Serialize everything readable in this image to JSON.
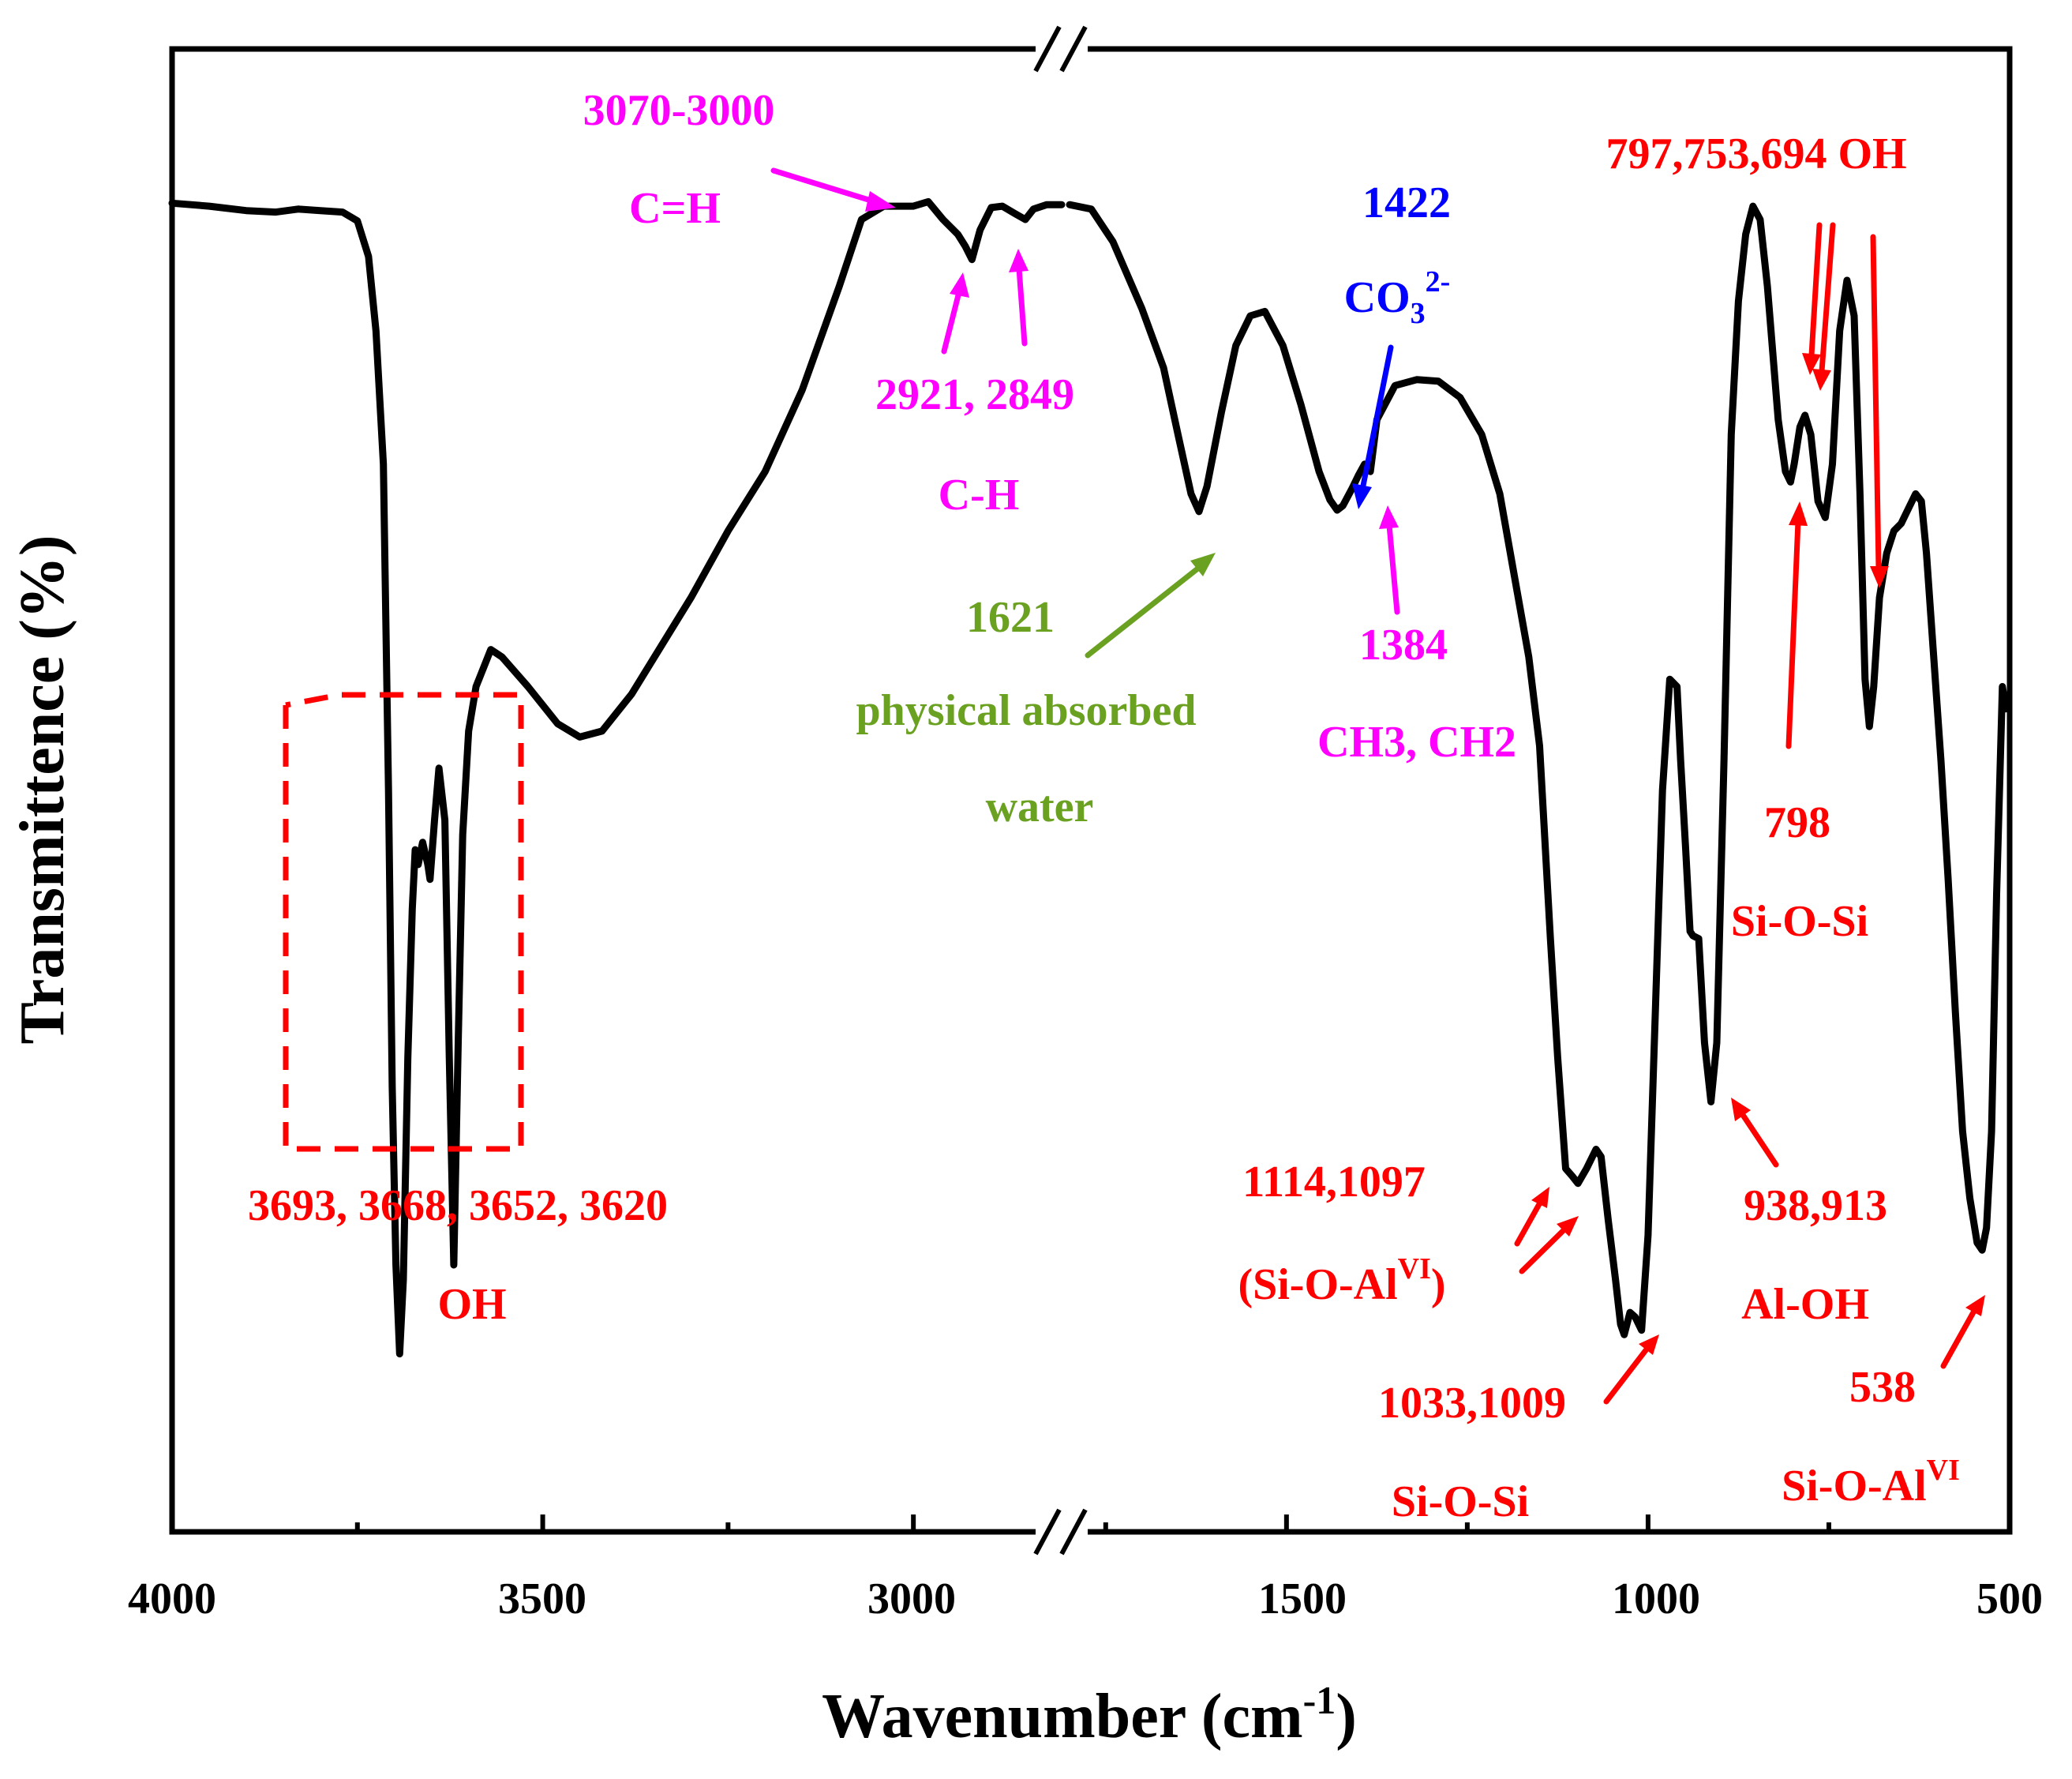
{
  "colors": {
    "spectrum": "#000000",
    "magenta": "#ff00ff",
    "blue": "#0000ff",
    "green": "#6aa121",
    "red": "#ff0000"
  },
  "chart_data": {
    "type": "line",
    "title": "",
    "xlabel_main": "Wavenumber (cm",
    "xlabel_sup": "-1",
    "xlabel_end": ")",
    "ylabel": "Transmittence (%)",
    "x_axis": {
      "reversed": true,
      "broken": true,
      "segment_left": [
        4000,
        2800
      ],
      "segment_right": [
        1800,
        500
      ]
    },
    "ylim": [
      0,
      100
    ],
    "y_ticks_shown": false,
    "tick_labels": [
      "4000",
      "3500",
      "3000",
      "1500",
      "1000",
      "500"
    ],
    "series": [
      {
        "name": "spectrum",
        "points": [
          [
            4000,
            89.6
          ],
          [
            3950,
            89.4
          ],
          [
            3900,
            89.1
          ],
          [
            3860,
            89.0
          ],
          [
            3830,
            89.2
          ],
          [
            3800,
            89.1
          ],
          [
            3770,
            89.0
          ],
          [
            3750,
            88.4
          ],
          [
            3735,
            86.0
          ],
          [
            3725,
            81.0
          ],
          [
            3715,
            72.0
          ],
          [
            3708,
            50.0
          ],
          [
            3703,
            30.0
          ],
          [
            3698,
            18.0
          ],
          [
            3693,
            12.0
          ],
          [
            3688,
            17.0
          ],
          [
            3682,
            32.0
          ],
          [
            3676,
            42.0
          ],
          [
            3672,
            46.0
          ],
          [
            3668,
            45.0
          ],
          [
            3662,
            46.5
          ],
          [
            3655,
            45.0
          ],
          [
            3652,
            44.0
          ],
          [
            3646,
            48.0
          ],
          [
            3640,
            51.5
          ],
          [
            3632,
            48.0
          ],
          [
            3626,
            32.0
          ],
          [
            3620,
            18.0
          ],
          [
            3614,
            33.0
          ],
          [
            3608,
            47.0
          ],
          [
            3600,
            54.0
          ],
          [
            3590,
            57.0
          ],
          [
            3570,
            59.5
          ],
          [
            3555,
            59.0
          ],
          [
            3520,
            57.0
          ],
          [
            3480,
            54.5
          ],
          [
            3450,
            53.6
          ],
          [
            3420,
            54.0
          ],
          [
            3380,
            56.5
          ],
          [
            3300,
            63.0
          ],
          [
            3250,
            67.5
          ],
          [
            3200,
            71.5
          ],
          [
            3150,
            77.0
          ],
          [
            3100,
            84.0
          ],
          [
            3070,
            88.5
          ],
          [
            3040,
            89.4
          ],
          [
            3000,
            89.4
          ],
          [
            2980,
            89.7
          ],
          [
            2960,
            88.5
          ],
          [
            2940,
            87.5
          ],
          [
            2930,
            86.7
          ],
          [
            2921,
            85.8
          ],
          [
            2910,
            87.8
          ],
          [
            2895,
            89.3
          ],
          [
            2880,
            89.4
          ],
          [
            2863,
            88.9
          ],
          [
            2849,
            88.5
          ],
          [
            2838,
            89.2
          ],
          [
            2820,
            89.5
          ],
          [
            2800,
            89.5
          ],
          [
            1800,
            89.5
          ],
          [
            1770,
            89.2
          ],
          [
            1740,
            87.0
          ],
          [
            1700,
            82.5
          ],
          [
            1670,
            78.5
          ],
          [
            1650,
            74.0
          ],
          [
            1632,
            70.0
          ],
          [
            1621,
            68.8
          ],
          [
            1610,
            70.5
          ],
          [
            1590,
            75.5
          ],
          [
            1570,
            80.0
          ],
          [
            1550,
            82.0
          ],
          [
            1530,
            82.3
          ],
          [
            1505,
            80.0
          ],
          [
            1480,
            76.0
          ],
          [
            1455,
            71.5
          ],
          [
            1440,
            69.6
          ],
          [
            1430,
            68.9
          ],
          [
            1422,
            69.2
          ],
          [
            1410,
            70.3
          ],
          [
            1400,
            71.3
          ],
          [
            1392,
            72.0
          ],
          [
            1384,
            71.5
          ],
          [
            1375,
            75.0
          ],
          [
            1350,
            77.3
          ],
          [
            1320,
            77.7
          ],
          [
            1290,
            77.6
          ],
          [
            1260,
            76.5
          ],
          [
            1230,
            74.0
          ],
          [
            1205,
            70.0
          ],
          [
            1185,
            64.5
          ],
          [
            1165,
            59.0
          ],
          [
            1150,
            53.0
          ],
          [
            1135,
            40.0
          ],
          [
            1125,
            32.0
          ],
          [
            1114,
            24.5
          ],
          [
            1105,
            24.0
          ],
          [
            1097,
            23.5
          ],
          [
            1085,
            24.5
          ],
          [
            1072,
            25.8
          ],
          [
            1065,
            25.3
          ],
          [
            1055,
            21.0
          ],
          [
            1045,
            17.0
          ],
          [
            1038,
            14.0
          ],
          [
            1033,
            13.3
          ],
          [
            1025,
            14.8
          ],
          [
            1018,
            14.5
          ],
          [
            1009,
            13.6
          ],
          [
            1000,
            20.0
          ],
          [
            990,
            35.0
          ],
          [
            980,
            50.0
          ],
          [
            970,
            57.5
          ],
          [
            960,
            57.0
          ],
          [
            955,
            52.0
          ],
          [
            948,
            46.0
          ],
          [
            942,
            40.5
          ],
          [
            938,
            40.2
          ],
          [
            930,
            40.0
          ],
          [
            922,
            33.0
          ],
          [
            913,
            29.0
          ],
          [
            905,
            33.0
          ],
          [
            895,
            52.0
          ],
          [
            885,
            74.0
          ],
          [
            875,
            83.0
          ],
          [
            865,
            87.5
          ],
          [
            855,
            89.4
          ],
          [
            845,
            88.5
          ],
          [
            835,
            84.0
          ],
          [
            820,
            75.0
          ],
          [
            810,
            71.5
          ],
          [
            803,
            70.8
          ],
          [
            798,
            72.0
          ],
          [
            790,
            74.5
          ],
          [
            783,
            75.3
          ],
          [
            775,
            74.0
          ],
          [
            765,
            69.5
          ],
          [
            755,
            68.4
          ],
          [
            745,
            72.0
          ],
          [
            735,
            81.0
          ],
          [
            725,
            84.4
          ],
          [
            715,
            82.0
          ],
          [
            707,
            70.0
          ],
          [
            700,
            57.5
          ],
          [
            694,
            54.3
          ],
          [
            688,
            57.0
          ],
          [
            680,
            63.0
          ],
          [
            670,
            66.0
          ],
          [
            660,
            67.5
          ],
          [
            650,
            68.0
          ],
          [
            640,
            69.0
          ],
          [
            630,
            70.0
          ],
          [
            622,
            69.5
          ],
          [
            615,
            66.0
          ],
          [
            605,
            59.0
          ],
          [
            595,
            52.0
          ],
          [
            585,
            44.0
          ],
          [
            575,
            35.0
          ],
          [
            565,
            27.0
          ],
          [
            555,
            22.5
          ],
          [
            545,
            19.5
          ],
          [
            538,
            19.0
          ],
          [
            532,
            20.5
          ],
          [
            525,
            27.0
          ],
          [
            518,
            43.0
          ],
          [
            510,
            57.0
          ],
          [
            505,
            55.5
          ]
        ]
      }
    ],
    "annotations": {
      "ch_stretch_range": "3070-3000",
      "ch_stretch_label": "C=H",
      "ch_peaks": "2921, 2849",
      "ch_label": "C-H",
      "carbonate_wn": "1422",
      "carbonate_base": "CO",
      "carbonate_sub": "3",
      "carbonate_sup": "2-",
      "water_wn": "1621",
      "water_line1": "physical absorbed",
      "water_line2": "water",
      "ch3_wn": "1384",
      "ch3_label": "CH3, CH2",
      "oh_peaks": "3693, 3668, 3652, 3620",
      "oh_label": "OH",
      "oh_bends": "797,753,694 OH",
      "sioal_wn": "1114,1097",
      "sioal_pre": "(Si-O-Al",
      "sioal_sup": "VI",
      "sioal_post": ")",
      "sios_wn": "1033,1009",
      "sios_label": "Si-O-Si",
      "aloh_wn": "938,913",
      "aloh_label": "Al-OH",
      "sios2_wn": "798",
      "sios2_label": "Si-O-Si",
      "sioal2_wn": "538",
      "sioal2_pre": "Si-O-Al",
      "sioal2_sup": "VI"
    }
  }
}
